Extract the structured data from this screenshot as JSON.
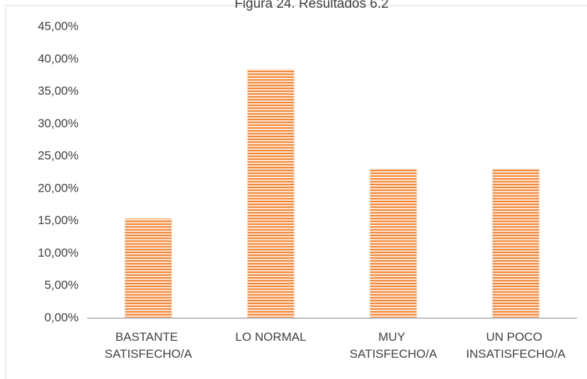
{
  "chart_data": {
    "type": "bar",
    "title": "Figura 24. Resultados 6.2",
    "categories": [
      "BASTANTE SATISFECHO/A",
      "LO NORMAL",
      "MUY SATISFECHO/A",
      "UN POCO INSATISFECHO/A"
    ],
    "values": [
      15.38,
      38.46,
      23.08,
      23.08
    ],
    "color": "#f28a3c",
    "ylim": [
      0,
      45
    ],
    "yticks": [
      {
        "value": 0,
        "label": "0,00%"
      },
      {
        "value": 5,
        "label": "5,00%"
      },
      {
        "value": 10,
        "label": "10,00%"
      },
      {
        "value": 15,
        "label": "15,00%"
      },
      {
        "value": 20,
        "label": "20,00%"
      },
      {
        "value": 25,
        "label": "25,00%"
      },
      {
        "value": 30,
        "label": "30,00%"
      },
      {
        "value": 35,
        "label": "35,00%"
      },
      {
        "value": 40,
        "label": "40,00%"
      },
      {
        "value": 45,
        "label": "45,00%"
      }
    ],
    "grid": false
  }
}
